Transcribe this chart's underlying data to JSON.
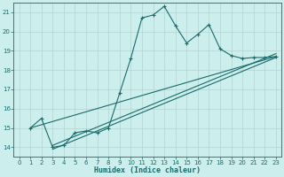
{
  "xlabel": "Humidex (Indice chaleur)",
  "bg_color": "#cceeed",
  "grid_color": "#b8d8d8",
  "line_color": "#1a6b6b",
  "xlim": [
    -0.5,
    23.5
  ],
  "ylim": [
    13.5,
    21.5
  ],
  "xticks": [
    0,
    1,
    2,
    3,
    4,
    5,
    6,
    7,
    8,
    9,
    10,
    11,
    12,
    13,
    14,
    15,
    16,
    17,
    18,
    19,
    20,
    21,
    22,
    23
  ],
  "yticks": [
    14,
    15,
    16,
    17,
    18,
    19,
    20,
    21
  ],
  "main_x": [
    1,
    2,
    3,
    4,
    5,
    6,
    7,
    8,
    9,
    10,
    11,
    12,
    13,
    14,
    15,
    16,
    17,
    18,
    19,
    20,
    21,
    22,
    23
  ],
  "main_y": [
    15.0,
    15.5,
    14.0,
    14.1,
    14.75,
    14.85,
    14.75,
    15.0,
    16.8,
    18.6,
    20.7,
    20.85,
    21.3,
    20.3,
    19.4,
    19.85,
    20.35,
    19.1,
    18.75,
    18.6,
    18.65,
    18.65,
    18.7
  ],
  "line1_x": [
    1,
    23
  ],
  "line1_y": [
    15.0,
    18.7
  ],
  "line2_x": [
    3,
    23
  ],
  "line2_y": [
    13.9,
    18.65
  ],
  "line3_x": [
    3,
    23
  ],
  "line3_y": [
    14.1,
    18.85
  ]
}
